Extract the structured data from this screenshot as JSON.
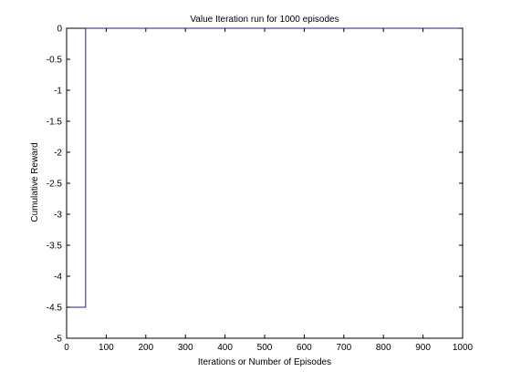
{
  "chart_data": {
    "type": "line",
    "title": "Value Iteration run for 1000 episodes",
    "xlabel": "Iterations or Number of Episodes",
    "ylabel": "Cumulative Reward",
    "xlim": [
      0,
      1000
    ],
    "ylim": [
      -5,
      0
    ],
    "xticks": [
      0,
      100,
      200,
      300,
      400,
      500,
      600,
      700,
      800,
      900,
      1000
    ],
    "yticks": [
      0,
      -0.5,
      -1,
      -1.5,
      -2,
      -2.5,
      -3,
      -3.5,
      -4,
      -4.5,
      -5
    ],
    "xtick_labels": [
      "0",
      "100",
      "200",
      "300",
      "400",
      "500",
      "600",
      "700",
      "800",
      "900",
      "1000"
    ],
    "ytick_labels": [
      "0",
      "-0.5",
      "-1",
      "-1.5",
      "-2",
      "-2.5",
      "-3",
      "-3.5",
      "-4",
      "-4.5",
      "-5"
    ],
    "grid": false,
    "legend": "none",
    "series": [
      {
        "color": "#1f1f8f",
        "x": [
          0,
          48,
          48,
          1000
        ],
        "y": [
          -4.5,
          -4.5,
          0,
          0
        ]
      }
    ]
  }
}
